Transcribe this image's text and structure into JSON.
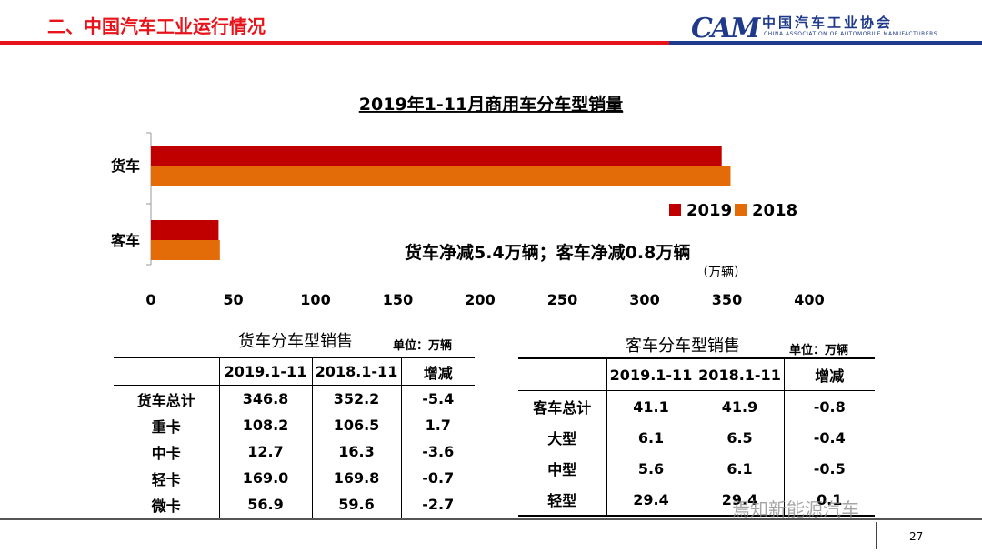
{
  "header": {
    "section_title": "二、中国汽车工业运行情况",
    "logo_mark": "CAM",
    "logo_cn": "中国汽车工业协会",
    "logo_en": "CHINA ASSOCIATION OF AUTOMOBILE MANUFACTURERS"
  },
  "colors": {
    "red": "#c00000",
    "orange": "#e36c09",
    "title_red": "#e8141b",
    "brand_blue": "#1f3a8a"
  },
  "chart_data": {
    "type": "bar",
    "orientation": "horizontal",
    "title": "2019年1-11月商用车分车型销量",
    "categories": [
      "货车",
      "客车"
    ],
    "series": [
      {
        "name": "2019",
        "values": [
          346.8,
          41.1
        ],
        "color": "#c00000"
      },
      {
        "name": "2018",
        "values": [
          352.2,
          41.9
        ],
        "color": "#e36c09"
      }
    ],
    "xlim": [
      0,
      400
    ],
    "xticks": [
      "0",
      "50",
      "100",
      "150",
      "200",
      "250",
      "300",
      "350",
      "400"
    ],
    "xunit": "（万辆）",
    "annotation": "货车净减5.4万辆；客车净减0.8万辆",
    "legend_position": "right",
    "grid": false
  },
  "truck_table": {
    "title": "货车分车型销售",
    "unit": "单位：万辆",
    "headers": [
      "",
      "2019.1-11",
      "2018.1-11",
      "增减"
    ],
    "rows": [
      [
        "货车总计",
        "346.8",
        "352.2",
        "-5.4"
      ],
      [
        "重卡",
        "108.2",
        "106.5",
        "1.7"
      ],
      [
        "中卡",
        "12.7",
        "16.3",
        "-3.6"
      ],
      [
        "轻卡",
        "169.0",
        "169.8",
        "-0.7"
      ],
      [
        "微卡",
        "56.9",
        "59.6",
        "-2.7"
      ]
    ]
  },
  "bus_table": {
    "title": "客车分车型销售",
    "unit": "单位：万辆",
    "headers": [
      "",
      "2019.1-11",
      "2018.1-11",
      "增减"
    ],
    "rows": [
      [
        "客车总计",
        "41.1",
        "41.9",
        "-0.8"
      ],
      [
        "大型",
        "6.1",
        "6.5",
        "-0.4"
      ],
      [
        "中型",
        "5.6",
        "6.1",
        "-0.5"
      ],
      [
        "轻型",
        "29.4",
        "29.4",
        "0.1"
      ]
    ]
  },
  "footer": {
    "page_number": "27",
    "watermark": "焉知新能源汽车"
  }
}
